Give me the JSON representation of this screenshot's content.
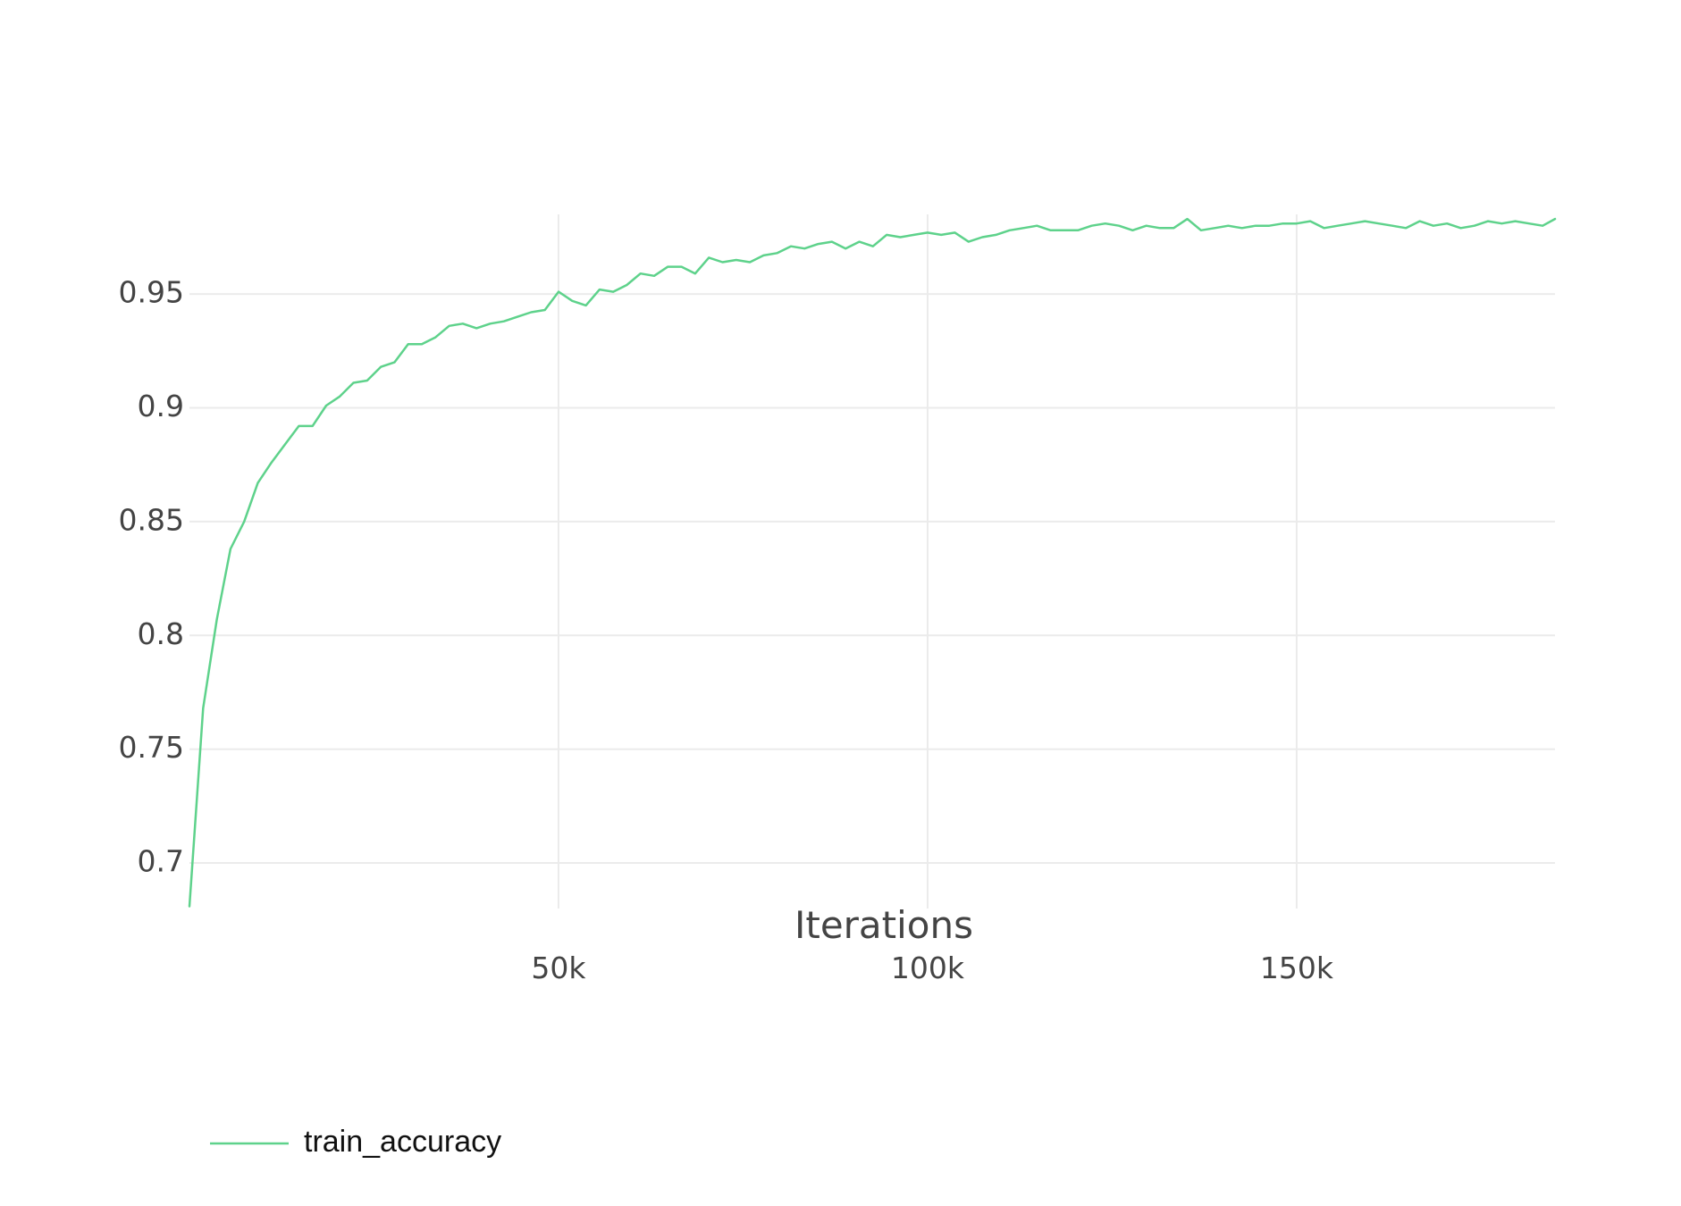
{
  "chart_data": {
    "type": "line",
    "title": "",
    "xlabel": "Iterations",
    "ylabel": "",
    "xlim": [
      0,
      185000
    ],
    "ylim": [
      0.68,
      0.985
    ],
    "grid": true,
    "legend_position": "bottom-left",
    "x_ticks": [
      50000,
      100000,
      150000
    ],
    "x_tick_labels": [
      "50k",
      "100k",
      "150k"
    ],
    "y_ticks": [
      0.7,
      0.75,
      0.8,
      0.85,
      0.9,
      0.95
    ],
    "y_tick_labels": [
      "0.7",
      "0.75",
      "0.8",
      "0.85",
      "0.9",
      "0.95"
    ],
    "series": [
      {
        "name": "train_accuracy",
        "color": "#5ed28b",
        "x": [
          0,
          1852,
          3704,
          5556,
          7407,
          9259,
          11111,
          12963,
          14815,
          16667,
          18519,
          20370,
          22222,
          24074,
          25926,
          27778,
          29630,
          31481,
          33333,
          35185,
          37037,
          38889,
          40741,
          42593,
          44444,
          46296,
          48148,
          50000,
          51852,
          53704,
          55556,
          57407,
          59259,
          61111,
          62963,
          64815,
          66667,
          68519,
          70370,
          72222,
          74074,
          75926,
          77778,
          79630,
          81481,
          83333,
          85185,
          87037,
          88889,
          90741,
          92593,
          94444,
          96296,
          98148,
          100000,
          101852,
          103704,
          105556,
          107407,
          109259,
          111111,
          112963,
          114815,
          116667,
          118519,
          120370,
          122222,
          124074,
          125926,
          127778,
          129630,
          131481,
          133333,
          135185,
          137037,
          138889,
          140741,
          142593,
          144444,
          146296,
          148148,
          150000,
          151852,
          153704,
          155556,
          157407,
          159259,
          161111,
          162963,
          164815,
          166667,
          168519,
          170370,
          172222,
          174074,
          175926,
          177778,
          179630,
          181481,
          183333,
          185000
        ],
        "y": [
          0.681,
          0.768,
          0.807,
          0.838,
          0.85,
          0.867,
          0.876,
          0.884,
          0.892,
          0.892,
          0.901,
          0.905,
          0.911,
          0.912,
          0.918,
          0.92,
          0.928,
          0.928,
          0.931,
          0.936,
          0.937,
          0.935,
          0.937,
          0.938,
          0.94,
          0.942,
          0.943,
          0.951,
          0.947,
          0.945,
          0.952,
          0.951,
          0.954,
          0.959,
          0.958,
          0.962,
          0.962,
          0.959,
          0.966,
          0.964,
          0.965,
          0.964,
          0.967,
          0.968,
          0.971,
          0.97,
          0.972,
          0.973,
          0.97,
          0.973,
          0.971,
          0.976,
          0.975,
          0.976,
          0.977,
          0.976,
          0.977,
          0.973,
          0.975,
          0.976,
          0.978,
          0.979,
          0.98,
          0.978,
          0.978,
          0.978,
          0.98,
          0.981,
          0.98,
          0.978,
          0.98,
          0.979,
          0.979,
          0.983,
          0.978,
          0.979,
          0.98,
          0.979,
          0.98,
          0.98,
          0.981,
          0.981,
          0.982,
          0.979,
          0.98,
          0.981,
          0.982,
          0.981,
          0.98,
          0.979,
          0.982,
          0.98,
          0.981,
          0.979,
          0.98,
          0.982,
          0.981,
          0.982,
          0.981,
          0.98,
          0.983
        ]
      }
    ]
  },
  "legend": {
    "items": [
      {
        "label": "train_accuracy",
        "color": "#5ed28b"
      }
    ]
  }
}
